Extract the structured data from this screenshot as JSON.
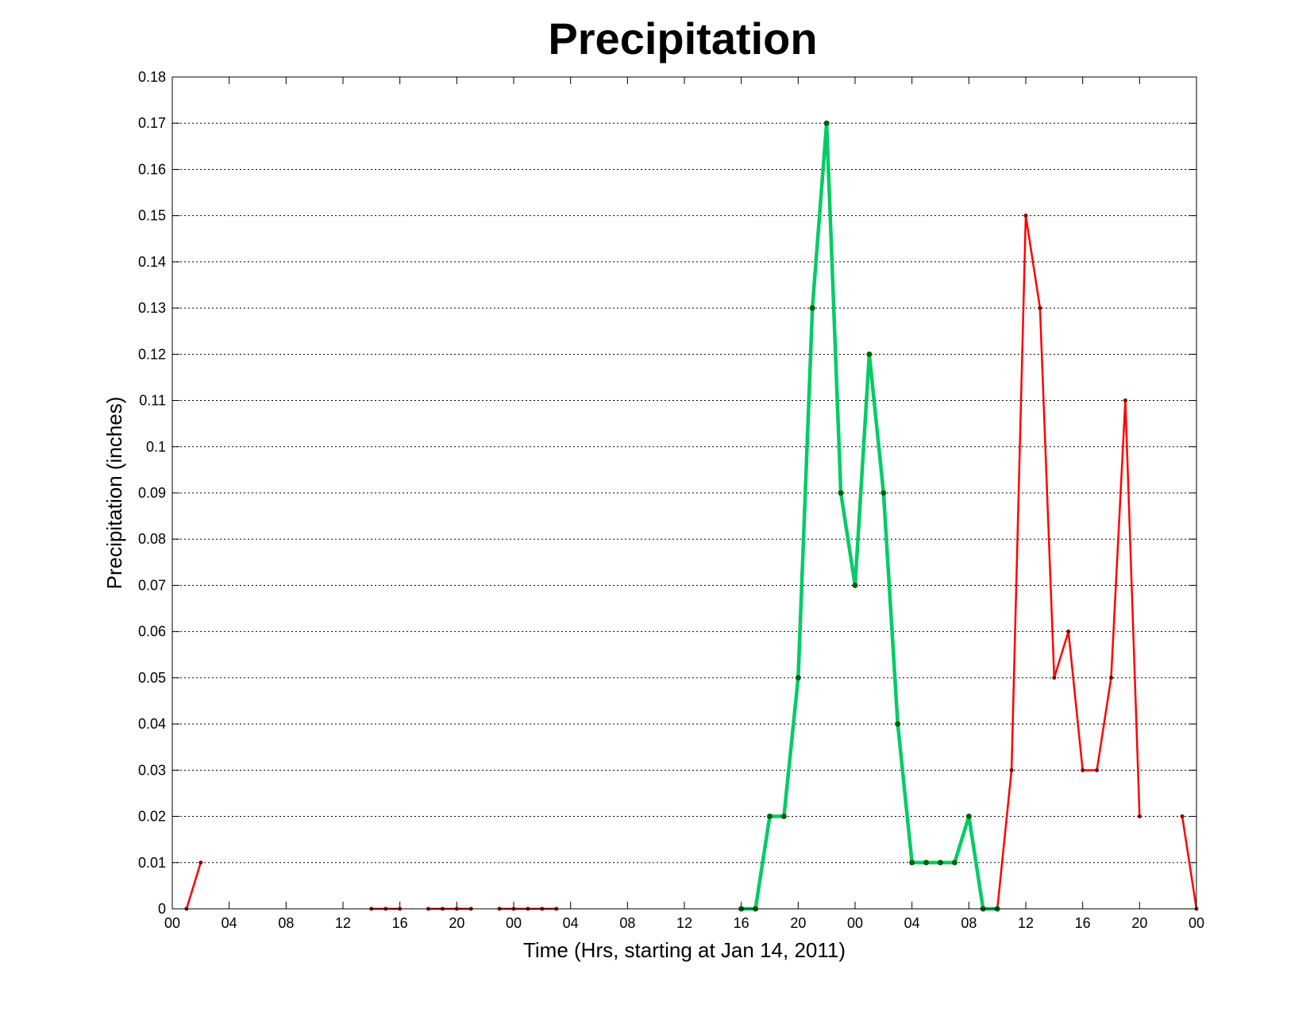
{
  "chart_data": {
    "type": "line",
    "title": "Precipitation",
    "xlabel": "Time (Hrs, starting at Jan 14, 2011)",
    "ylabel": "Precipitation (inches)",
    "xlim": [
      0,
      72
    ],
    "ylim": [
      0,
      0.18
    ],
    "grid": "horizontal-dotted",
    "x_tick_values": [
      0,
      4,
      8,
      12,
      16,
      20,
      24,
      28,
      32,
      36,
      40,
      44,
      48,
      52,
      56,
      60,
      64,
      68,
      72
    ],
    "x_tick_labels": [
      "00",
      "04",
      "08",
      "12",
      "16",
      "20",
      "00",
      "04",
      "08",
      "12",
      "16",
      "20",
      "00",
      "04",
      "08",
      "12",
      "16",
      "20",
      "00"
    ],
    "y_tick_values": [
      0,
      0.01,
      0.02,
      0.03,
      0.04,
      0.05,
      0.06,
      0.07,
      0.08,
      0.09,
      0.1,
      0.11,
      0.12,
      0.13,
      0.14,
      0.15,
      0.16,
      0.17,
      0.18
    ],
    "y_tick_labels": [
      "0",
      "0.01",
      "0.02",
      "0.03",
      "0.04",
      "0.05",
      "0.06",
      "0.07",
      "0.08",
      "0.09",
      "0.1",
      "0.11",
      "0.12",
      "0.13",
      "0.14",
      "0.15",
      "0.16",
      "0.17",
      "0.18"
    ],
    "series": [
      {
        "color": "#ff0000",
        "marker_color": "#8b0000",
        "line_width": "thin",
        "segments": [
          [
            [
              1,
              0
            ],
            [
              2,
              0.01
            ]
          ],
          [
            [
              14,
              0
            ],
            [
              15,
              0
            ],
            [
              16,
              0
            ]
          ],
          [
            [
              18,
              0
            ],
            [
              19,
              0
            ],
            [
              20,
              0
            ],
            [
              21,
              0
            ]
          ],
          [
            [
              23,
              0
            ],
            [
              24,
              0
            ],
            [
              25,
              0
            ],
            [
              26,
              0
            ],
            [
              27,
              0
            ]
          ],
          [
            [
              58,
              0
            ],
            [
              59,
              0.03
            ],
            [
              60,
              0.15
            ],
            [
              61,
              0.13
            ],
            [
              62,
              0.05
            ],
            [
              63,
              0.06
            ],
            [
              64,
              0.03
            ],
            [
              65,
              0.03
            ],
            [
              66,
              0.05
            ],
            [
              67,
              0.11
            ],
            [
              68,
              0.02
            ]
          ],
          [
            [
              71,
              0.02
            ],
            [
              72,
              0
            ]
          ]
        ]
      },
      {
        "color": "#00cc66",
        "marker_color": "#006400",
        "line_width": "thick",
        "segments": [
          [
            [
              40,
              0
            ],
            [
              41,
              0
            ],
            [
              42,
              0.02
            ],
            [
              43,
              0.02
            ],
            [
              44,
              0.05
            ],
            [
              45,
              0.13
            ],
            [
              46,
              0.17
            ],
            [
              47,
              0.09
            ],
            [
              48,
              0.07
            ],
            [
              49,
              0.12
            ],
            [
              50,
              0.09
            ],
            [
              51,
              0.04
            ],
            [
              52,
              0.01
            ],
            [
              53,
              0.01
            ],
            [
              54,
              0.01
            ],
            [
              55,
              0.01
            ],
            [
              56,
              0.02
            ],
            [
              57,
              0
            ],
            [
              58,
              0
            ]
          ]
        ]
      }
    ]
  }
}
